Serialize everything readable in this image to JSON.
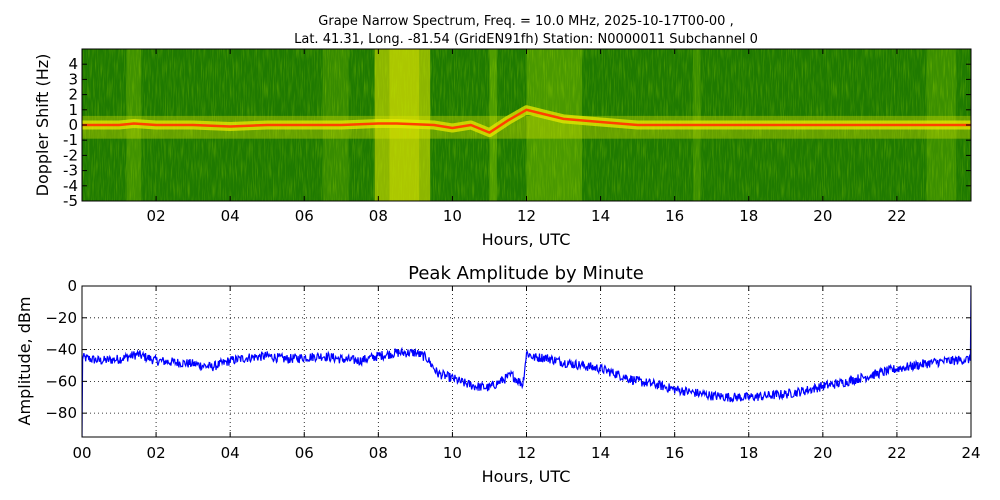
{
  "figure": {
    "title_line1": "Grape Narrow Spectrum, Freq. = 10.0 MHz, 2025-10-17T00-00 ,",
    "title_line2": "Lat.  41.31, Long. -81.54 (GridEN91fh) Station: N0000011 Subchannel 0"
  },
  "chart_data": [
    {
      "type": "heatmap",
      "name": "spectrogram",
      "xlabel": "Hours, UTC",
      "ylabel": "Doppler Shift (Hz)",
      "xlim": [
        0,
        24
      ],
      "ylim": [
        -5,
        5
      ],
      "x_ticks": [
        2,
        4,
        6,
        8,
        10,
        12,
        14,
        16,
        18,
        20,
        22
      ],
      "x_tick_labels": [
        "02",
        "04",
        "06",
        "08",
        "10",
        "12",
        "14",
        "16",
        "18",
        "20",
        "22"
      ],
      "y_ticks": [
        -5,
        -4,
        -3,
        -2,
        -1,
        0,
        1,
        2,
        3,
        4
      ],
      "y_tick_labels": [
        "-5",
        "-4",
        "-3",
        "-2",
        "-1",
        "0",
        "1",
        "2",
        "3",
        "4"
      ],
      "colors": {
        "background": "#1f7a00",
        "mid": "#7fbf00",
        "high": "#e8e800",
        "peak": "#ff4000"
      },
      "carrier_trace": {
        "hours": [
          0,
          1,
          1.4,
          2,
          3,
          4,
          5,
          6,
          7,
          8,
          8.5,
          9,
          9.5,
          10,
          10.5,
          11,
          11.5,
          12,
          12.5,
          13,
          14,
          15,
          16,
          17,
          18,
          19,
          20,
          21,
          22,
          23,
          24
        ],
        "hz": [
          0,
          0,
          0.1,
          0,
          0,
          -0.1,
          0,
          0,
          0,
          0.1,
          0.1,
          0.05,
          0,
          -0.2,
          0,
          -0.5,
          0.3,
          1.0,
          0.7,
          0.4,
          0.2,
          0,
          0,
          0,
          0,
          0,
          0,
          0,
          0,
          0,
          0
        ]
      }
    },
    {
      "type": "line",
      "name": "amplitude",
      "title": "Peak Amplitude by Minute",
      "xlabel": "Hours, UTC",
      "ylabel": "Amplitude, dBm",
      "xlim": [
        0,
        24
      ],
      "ylim": [
        -95,
        0
      ],
      "grid": true,
      "line_color": "#0000ff",
      "x_ticks": [
        0,
        2,
        4,
        6,
        8,
        10,
        12,
        14,
        16,
        18,
        20,
        22,
        24
      ],
      "x_tick_labels": [
        "00",
        "02",
        "04",
        "06",
        "08",
        "10",
        "12",
        "14",
        "16",
        "18",
        "20",
        "22",
        "24"
      ],
      "y_ticks": [
        0,
        -20,
        -40,
        -60,
        -80
      ],
      "y_tick_labels": [
        "0",
        "−20",
        "−40",
        "−60",
        "−80"
      ],
      "x": [
        0,
        0.5,
        1,
        1.5,
        2,
        2.5,
        3,
        3.5,
        4,
        4.5,
        5,
        5.5,
        6,
        6.5,
        7,
        7.5,
        8,
        8.5,
        9,
        9.3,
        9.6,
        10,
        10.3,
        10.6,
        11,
        11.3,
        11.6,
        11.9,
        12,
        12.2,
        12.5,
        13,
        13.5,
        14,
        14.5,
        15,
        15.5,
        16,
        16.5,
        17,
        17.5,
        18,
        18.5,
        19,
        19.5,
        20,
        20.5,
        21,
        21.5,
        22,
        22.5,
        23,
        23.5,
        24
      ],
      "y": [
        -45,
        -47,
        -46,
        -43,
        -47,
        -48,
        -49,
        -51,
        -47,
        -45,
        -44,
        -46,
        -45,
        -44,
        -46,
        -47,
        -44,
        -42,
        -42,
        -45,
        -55,
        -58,
        -61,
        -63,
        -64,
        -60,
        -56,
        -62,
        -42,
        -45,
        -45,
        -48,
        -50,
        -52,
        -56,
        -60,
        -62,
        -65,
        -67,
        -69,
        -70,
        -70,
        -69,
        -68,
        -66,
        -63,
        -61,
        -58,
        -55,
        -52,
        -50,
        -48,
        -47,
        -46
      ]
    }
  ]
}
